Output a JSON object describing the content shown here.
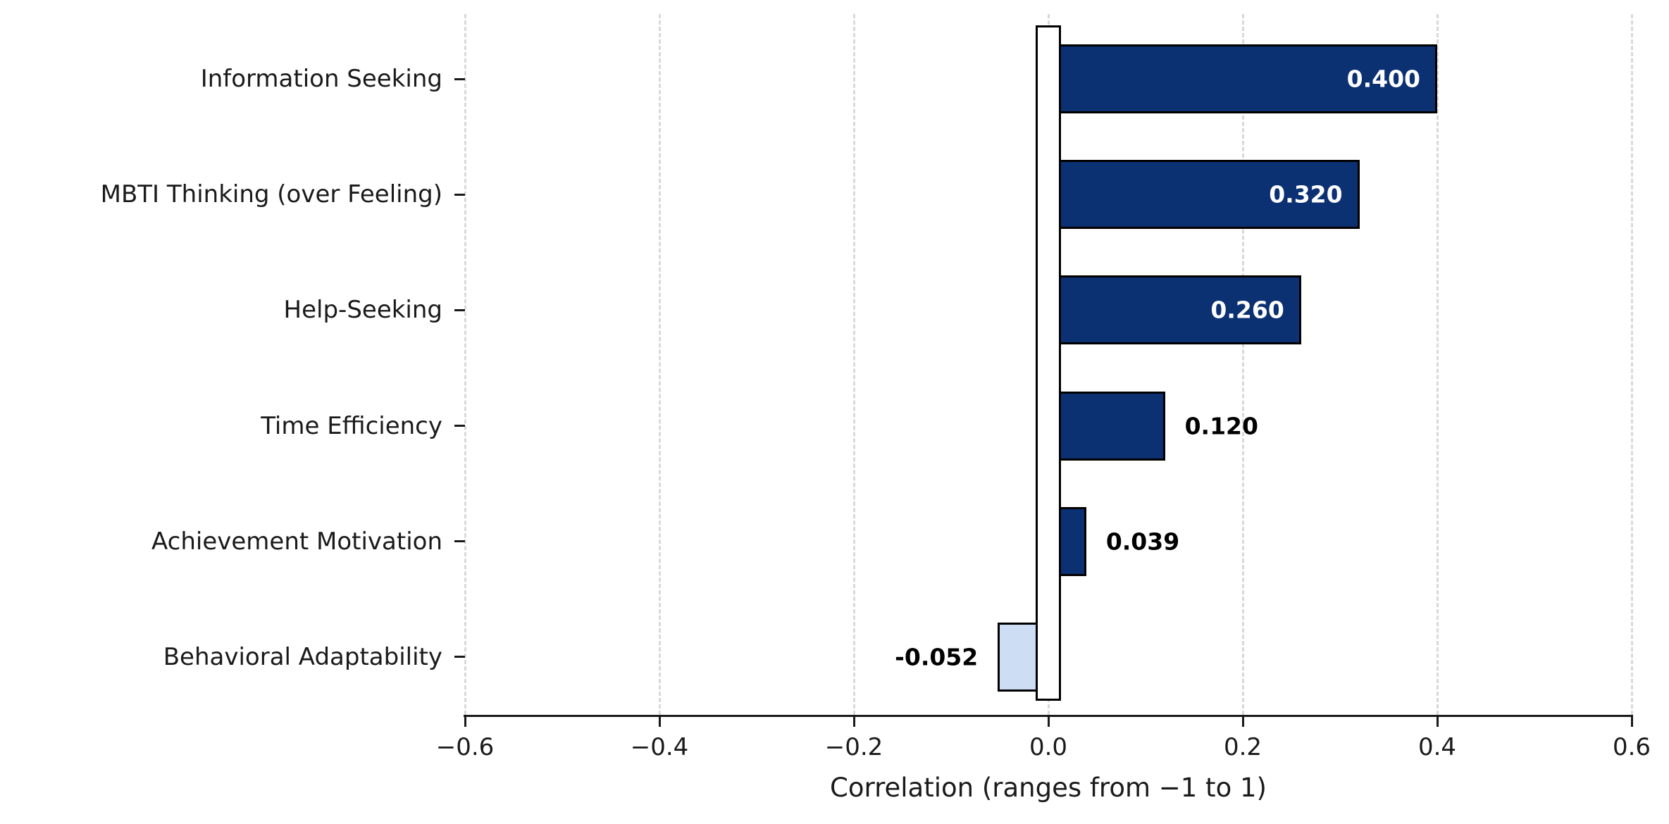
{
  "chart_data": {
    "type": "bar",
    "orientation": "horizontal",
    "title": "",
    "xlabel": "Correlation (ranges from −1 to 1)",
    "ylabel": "",
    "xlim": [
      -0.6,
      0.6
    ],
    "grid": "vertical dashed",
    "legend": "none",
    "categories": [
      "Information Seeking",
      "MBTI Thinking (over Feeling)",
      "Help-Seeking",
      "Time Efficiency",
      "Achievement Motivation",
      "Behavioral Adaptability"
    ],
    "values": [
      0.4,
      0.32,
      0.26,
      0.12,
      0.039,
      -0.052
    ],
    "value_labels": [
      "0.400",
      "0.320",
      "0.260",
      "0.120",
      "0.039",
      "-0.052"
    ],
    "x_ticks": [
      -0.6,
      -0.4,
      -0.2,
      0.0,
      0.2,
      0.4,
      0.6
    ],
    "x_tick_labels": [
      "−0.6",
      "−0.4",
      "−0.2",
      "0.0",
      "0.2",
      "0.4",
      "0.6"
    ],
    "zero_reference_marker": "white rectangle with black edge at x = 0",
    "colors": {
      "positive_bar": "#0c3173",
      "negative_bar": "#ccddf4",
      "bar_edge": "#000000",
      "label_inside_bar": "#ffffff",
      "label_outside_bar": "#000000",
      "grid": "#d9d9d9",
      "axis": "#1a1a1a",
      "background": "#ffffff"
    }
  }
}
